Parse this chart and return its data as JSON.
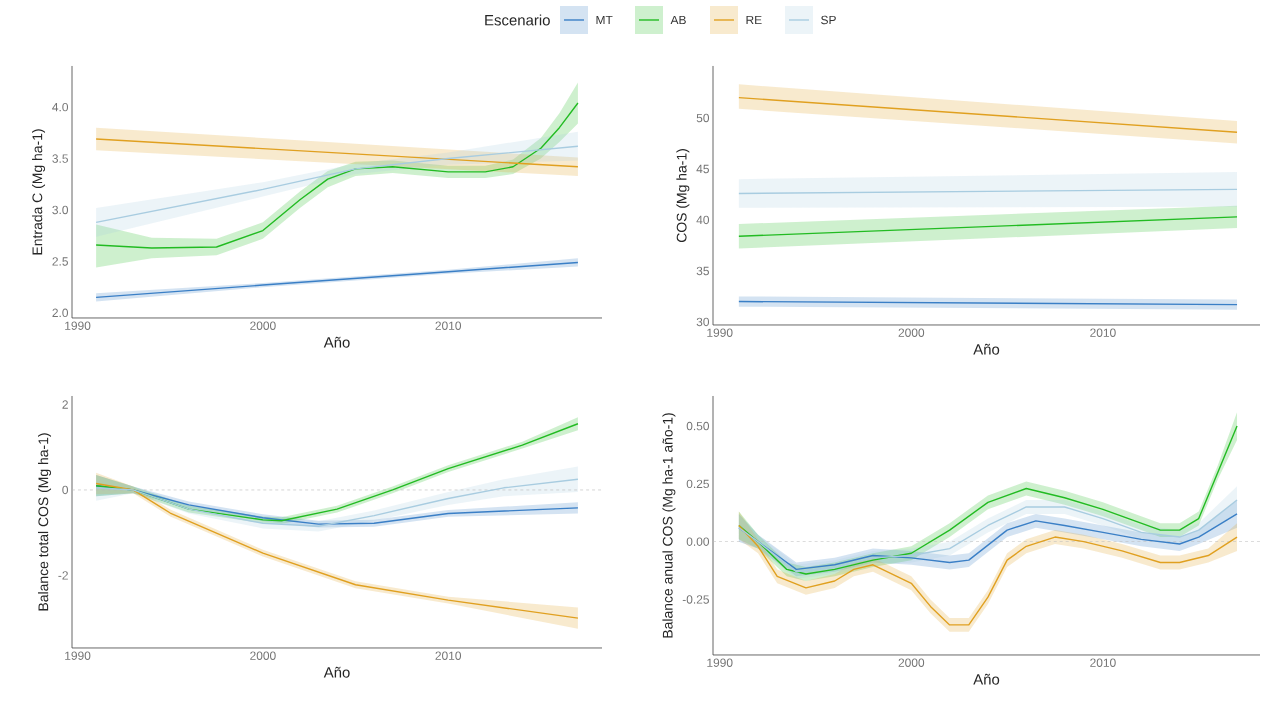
{
  "chart_data": [
    {
      "type": "line",
      "legend": "top",
      "legend_title": "Escenario",
      "xlabel": "Año",
      "ylabel": "Entrada C (Mg ha-1)",
      "xlim": [
        1989.7,
        2018.3
      ],
      "ylim": [
        1.95,
        4.4
      ],
      "xticks": [
        1990,
        2000,
        2010
      ],
      "yticks": [
        {
          "value": 2,
          "label": "2.0"
        },
        {
          "value": 2.5,
          "label": "2.5"
        },
        {
          "value": 3,
          "label": "3.0"
        },
        {
          "value": 3.5,
          "label": "3.5"
        },
        {
          "value": 4,
          "label": "4.0"
        }
      ],
      "series": [
        {
          "name": "MT",
          "color": "#3a7fc6",
          "x": [
            1991,
            2000,
            2010,
            2017
          ],
          "values": [
            2.15,
            2.27,
            2.4,
            2.49
          ],
          "lower": [
            2.11,
            2.25,
            2.38,
            2.45
          ],
          "upper": [
            2.19,
            2.29,
            2.42,
            2.53
          ]
        },
        {
          "name": "AB",
          "color": "#22bb22",
          "x": [
            1991,
            1994,
            1997.5,
            2000,
            2002,
            2003.5,
            2005,
            2007,
            2010,
            2012,
            2013.5,
            2015,
            2016,
            2017
          ],
          "values": [
            2.66,
            2.63,
            2.64,
            2.8,
            3.1,
            3.3,
            3.4,
            3.42,
            3.37,
            3.37,
            3.42,
            3.6,
            3.8,
            4.04
          ],
          "lower": [
            2.44,
            2.53,
            2.56,
            2.72,
            3.02,
            3.22,
            3.33,
            3.36,
            3.31,
            3.31,
            3.35,
            3.5,
            3.66,
            3.84
          ],
          "upper": [
            2.86,
            2.73,
            2.72,
            2.88,
            3.18,
            3.38,
            3.47,
            3.48,
            3.43,
            3.43,
            3.49,
            3.7,
            3.94,
            4.24
          ]
        },
        {
          "name": "RE",
          "color": "#e0a020",
          "x": [
            1991,
            2017
          ],
          "values": [
            3.69,
            3.42
          ],
          "lower": [
            3.58,
            3.33
          ],
          "upper": [
            3.8,
            3.51
          ]
        },
        {
          "name": "SP",
          "color": "#a8cce0",
          "x": [
            1991,
            2000,
            2005,
            2010,
            2017
          ],
          "values": [
            2.88,
            3.2,
            3.4,
            3.5,
            3.62
          ],
          "lower": [
            2.74,
            3.13,
            3.35,
            3.44,
            3.48
          ],
          "upper": [
            3.02,
            3.27,
            3.45,
            3.56,
            3.76
          ]
        }
      ]
    },
    {
      "type": "line",
      "xlabel": "Año",
      "ylabel": "COS (Mg ha-1)",
      "xlim": [
        1989.65,
        2018.2
      ],
      "ylim": [
        29.7,
        55.1
      ],
      "xticks": [
        1990,
        2000,
        2010
      ],
      "yticks": [
        30,
        35,
        40,
        45,
        50
      ],
      "series": [
        {
          "color": "#3a7fc6",
          "x": [
            1991,
            2017
          ],
          "values": [
            32.0,
            31.7
          ],
          "lower": [
            31.5,
            31.2
          ],
          "upper": [
            32.5,
            32.2
          ]
        },
        {
          "color": "#22bb22",
          "x": [
            1991,
            2017
          ],
          "values": [
            38.4,
            40.3
          ],
          "lower": [
            37.2,
            39.2
          ],
          "upper": [
            39.6,
            41.4
          ]
        },
        {
          "color": "#e0a020",
          "x": [
            1991,
            2017
          ],
          "values": [
            52.0,
            48.6
          ],
          "lower": [
            50.9,
            47.5
          ],
          "upper": [
            53.3,
            49.7
          ]
        },
        {
          "color": "#a8cce0",
          "x": [
            1991,
            2017
          ],
          "values": [
            42.6,
            43.0
          ],
          "lower": [
            41.2,
            41.3
          ],
          "upper": [
            44.0,
            44.7
          ]
        }
      ]
    },
    {
      "type": "line",
      "xlabel": "Año",
      "ylabel": "Balance total COS (Mg ha-1)",
      "xlim": [
        1989.7,
        2018.3
      ],
      "ylim": [
        -3.7,
        2.2
      ],
      "xticks": [
        1990,
        2000,
        2010
      ],
      "yticks": [
        -2,
        0,
        2
      ],
      "ref_lines": [
        {
          "axis": "y",
          "value": 0,
          "color": "#bbbbbb",
          "line_style": "dashed"
        }
      ],
      "series": [
        {
          "color": "#3a7fc6",
          "x": [
            1991,
            1993,
            1996,
            2000,
            2003,
            2006,
            2010,
            2017
          ],
          "values": [
            0.1,
            0,
            -0.35,
            -0.65,
            -0.8,
            -0.78,
            -0.55,
            -0.42
          ],
          "lower": [
            -0.15,
            -0.08,
            -0.43,
            -0.73,
            -0.88,
            -0.86,
            -0.63,
            -0.55
          ],
          "upper": [
            0.35,
            0.08,
            -0.27,
            -0.57,
            -0.72,
            -0.7,
            -0.47,
            -0.29
          ]
        },
        {
          "color": "#22bb22",
          "x": [
            1991,
            1993,
            1996,
            2000,
            2001,
            2004,
            2007,
            2010,
            2014,
            2017
          ],
          "values": [
            0.1,
            0,
            -0.45,
            -0.7,
            -0.72,
            -0.45,
            0.0,
            0.5,
            1.05,
            1.55
          ],
          "lower": [
            -0.15,
            -0.08,
            -0.53,
            -0.78,
            -0.8,
            -0.53,
            -0.08,
            0.42,
            0.97,
            1.4
          ],
          "upper": [
            0.35,
            0.08,
            -0.37,
            -0.62,
            -0.64,
            -0.37,
            0.08,
            0.58,
            1.13,
            1.7
          ]
        },
        {
          "color": "#e0a020",
          "x": [
            1991,
            1993,
            1995,
            2000,
            2005,
            2010,
            2017
          ],
          "values": [
            0.15,
            0,
            -0.54,
            -1.48,
            -2.22,
            -2.58,
            -3.0
          ],
          "lower": [
            -0.1,
            -0.08,
            -0.62,
            -1.56,
            -2.3,
            -2.66,
            -3.25
          ],
          "upper": [
            0.4,
            0.08,
            -0.46,
            -1.4,
            -2.14,
            -2.5,
            -2.75
          ]
        },
        {
          "color": "#a8cce0",
          "x": [
            1991,
            1993,
            1996,
            2000,
            2003,
            2006,
            2010,
            2013,
            2017
          ],
          "values": [
            0.05,
            0,
            -0.45,
            -0.78,
            -0.85,
            -0.6,
            -0.2,
            0.05,
            0.25
          ],
          "lower": [
            -0.25,
            -0.08,
            -0.55,
            -0.9,
            -0.97,
            -0.72,
            -0.35,
            -0.15,
            -0.05
          ],
          "upper": [
            0.35,
            0.08,
            -0.35,
            -0.66,
            -0.73,
            -0.48,
            -0.05,
            0.25,
            0.55
          ]
        }
      ]
    },
    {
      "type": "line",
      "xlabel": "Año",
      "ylabel": "Balance anual COS (Mg ha-1 año-1)",
      "xlim": [
        1989.65,
        2018.2
      ],
      "ylim": [
        -0.49,
        0.63
      ],
      "xticks": [
        1990,
        2000,
        2010
      ],
      "yticks": [
        {
          "value": -0.25,
          "label": "-0.25"
        },
        {
          "value": 0,
          "label": "0.00"
        },
        {
          "value": 0.25,
          "label": "0.25"
        },
        {
          "value": 0.5,
          "label": "0.50"
        }
      ],
      "ref_lines": [
        {
          "axis": "y",
          "value": 0,
          "color": "#bbbbbb",
          "line_style": "dashed"
        }
      ],
      "series": [
        {
          "color": "#3a7fc6",
          "x": [
            1991,
            1992,
            1994,
            1996,
            1998,
            2000,
            2002,
            2003,
            2005,
            2006.5,
            2008,
            2010,
            2012,
            2014,
            2015,
            2017
          ],
          "values": [
            0.06,
            0,
            -0.12,
            -0.1,
            -0.06,
            -0.07,
            -0.09,
            -0.08,
            0.05,
            0.09,
            0.07,
            0.04,
            0.01,
            -0.01,
            0.02,
            0.12
          ],
          "lower": [
            0,
            -0.03,
            -0.15,
            -0.13,
            -0.09,
            -0.1,
            -0.12,
            -0.11,
            0.02,
            0.06,
            0.04,
            0.01,
            -0.02,
            -0.04,
            -0.01,
            0.06
          ],
          "upper": [
            0.12,
            0.03,
            -0.09,
            -0.07,
            -0.03,
            -0.04,
            -0.06,
            -0.05,
            0.08,
            0.12,
            0.1,
            0.07,
            0.04,
            0.02,
            0.05,
            0.18
          ]
        },
        {
          "color": "#22bb22",
          "x": [
            1991,
            1992,
            1993.5,
            1994.5,
            1996,
            1998,
            2000,
            2002,
            2004,
            2006,
            2008,
            2010,
            2012,
            2013,
            2014,
            2015,
            2016,
            2017
          ],
          "values": [
            0.07,
            0,
            -0.12,
            -0.14,
            -0.12,
            -0.08,
            -0.05,
            0.05,
            0.17,
            0.23,
            0.19,
            0.14,
            0.08,
            0.05,
            0.05,
            0.1,
            0.3,
            0.5
          ],
          "lower": [
            0.01,
            -0.03,
            -0.15,
            -0.17,
            -0.15,
            -0.11,
            -0.08,
            0.02,
            0.14,
            0.2,
            0.16,
            0.11,
            0.05,
            0.02,
            0.02,
            0.07,
            0.27,
            0.44
          ],
          "upper": [
            0.13,
            0.03,
            -0.09,
            -0.11,
            -0.09,
            -0.05,
            -0.02,
            0.08,
            0.2,
            0.26,
            0.22,
            0.17,
            0.11,
            0.08,
            0.08,
            0.13,
            0.33,
            0.56
          ]
        },
        {
          "color": "#e0a020",
          "x": [
            1991,
            1992,
            1993,
            1994.5,
            1996,
            1997,
            1998,
            2000,
            2001,
            2002,
            2003,
            2004,
            2005,
            2006,
            2007.5,
            2009,
            2011,
            2013,
            2014,
            2015.5,
            2017
          ],
          "values": [
            0.07,
            -0.02,
            -0.15,
            -0.2,
            -0.17,
            -0.12,
            -0.1,
            -0.18,
            -0.28,
            -0.36,
            -0.36,
            -0.24,
            -0.08,
            -0.02,
            0.02,
            0,
            -0.04,
            -0.09,
            -0.09,
            -0.06,
            0.02
          ],
          "lower": [
            0.01,
            -0.05,
            -0.18,
            -0.23,
            -0.2,
            -0.15,
            -0.13,
            -0.21,
            -0.31,
            -0.39,
            -0.39,
            -0.27,
            -0.11,
            -0.05,
            -0.01,
            -0.03,
            -0.07,
            -0.12,
            -0.12,
            -0.09,
            -0.04
          ],
          "upper": [
            0.13,
            0.01,
            -0.12,
            -0.17,
            -0.14,
            -0.09,
            -0.07,
            -0.15,
            -0.25,
            -0.33,
            -0.33,
            -0.21,
            -0.05,
            0.01,
            0.05,
            0.03,
            -0.01,
            -0.06,
            -0.06,
            -0.03,
            0.08
          ]
        },
        {
          "color": "#a8cce0",
          "x": [
            1991,
            1992,
            1994,
            1996,
            1998,
            2000,
            2002,
            2004,
            2006,
            2008,
            2010,
            2012,
            2014,
            2015,
            2017
          ],
          "values": [
            0.06,
            0,
            -0.13,
            -0.11,
            -0.07,
            -0.06,
            -0.03,
            0.07,
            0.15,
            0.15,
            0.1,
            0.04,
            0.02,
            0.05,
            0.18
          ],
          "lower": [
            0,
            -0.03,
            -0.16,
            -0.14,
            -0.1,
            -0.09,
            -0.06,
            0.04,
            0.12,
            0.12,
            0.07,
            0.01,
            -0.01,
            0.02,
            0.12
          ],
          "upper": [
            0.12,
            0.03,
            -0.1,
            -0.08,
            -0.04,
            -0.03,
            0,
            0.1,
            0.18,
            0.18,
            0.13,
            0.07,
            0.05,
            0.08,
            0.24
          ]
        }
      ]
    }
  ]
}
